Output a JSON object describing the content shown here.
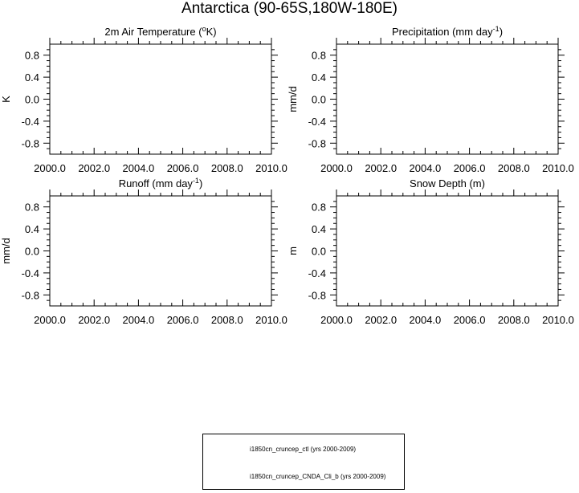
{
  "title": "Antarctica (90-65S,180W-180E)",
  "chart_data": [
    {
      "type": "line",
      "title": "2m Air Temperature (",
      "title_sup": "o",
      "title_tail": "K)",
      "ylabel": "K",
      "xlim": [
        2000.0,
        2010.0
      ],
      "ylim": [
        -1.0,
        1.0
      ],
      "xticks": [
        "2000.0",
        "2002.0",
        "2004.0",
        "2006.0",
        "2008.0",
        "2010.0"
      ],
      "yticks": [
        "0.8",
        "0.4",
        "0.0",
        "-0.4",
        "-0.8"
      ],
      "series": []
    },
    {
      "type": "line",
      "title": "Precipitation (mm day",
      "title_sup": "-1",
      "title_tail": ")",
      "ylabel": "mm/d",
      "xlim": [
        2000.0,
        2010.0
      ],
      "ylim": [
        -1.0,
        1.0
      ],
      "xticks": [
        "2000.0",
        "2002.0",
        "2004.0",
        "2006.0",
        "2008.0",
        "2010.0"
      ],
      "yticks": [
        "0.8",
        "0.4",
        "0.0",
        "-0.4",
        "-0.8"
      ],
      "series": []
    },
    {
      "type": "line",
      "title": "Runoff (mm day",
      "title_sup": "-1",
      "title_tail": ")",
      "ylabel": "mm/d",
      "xlim": [
        2000.0,
        2010.0
      ],
      "ylim": [
        -1.0,
        1.0
      ],
      "xticks": [
        "2000.0",
        "2002.0",
        "2004.0",
        "2006.0",
        "2008.0",
        "2010.0"
      ],
      "yticks": [
        "0.8",
        "0.4",
        "0.0",
        "-0.4",
        "-0.8"
      ],
      "series": []
    },
    {
      "type": "line",
      "title": "Snow Depth (m)",
      "title_sup": "",
      "title_tail": "",
      "ylabel": "m",
      "xlim": [
        2000.0,
        2010.0
      ],
      "ylim": [
        -1.0,
        1.0
      ],
      "xticks": [
        "2000.0",
        "2002.0",
        "2004.0",
        "2006.0",
        "2008.0",
        "2010.0"
      ],
      "yticks": [
        "0.8",
        "0.4",
        "0.0",
        "-0.4",
        "-0.8"
      ],
      "series": []
    }
  ],
  "legend": [
    {
      "label": "i1850cn_cruncep_ctl (yrs 2000-2009)",
      "color": "#3333cc",
      "dash": true
    },
    {
      "label": "i1850cn_cruncep_CNDA_Cli_b (yrs 2000-2009)",
      "color": "#b22222",
      "dash": false
    }
  ]
}
